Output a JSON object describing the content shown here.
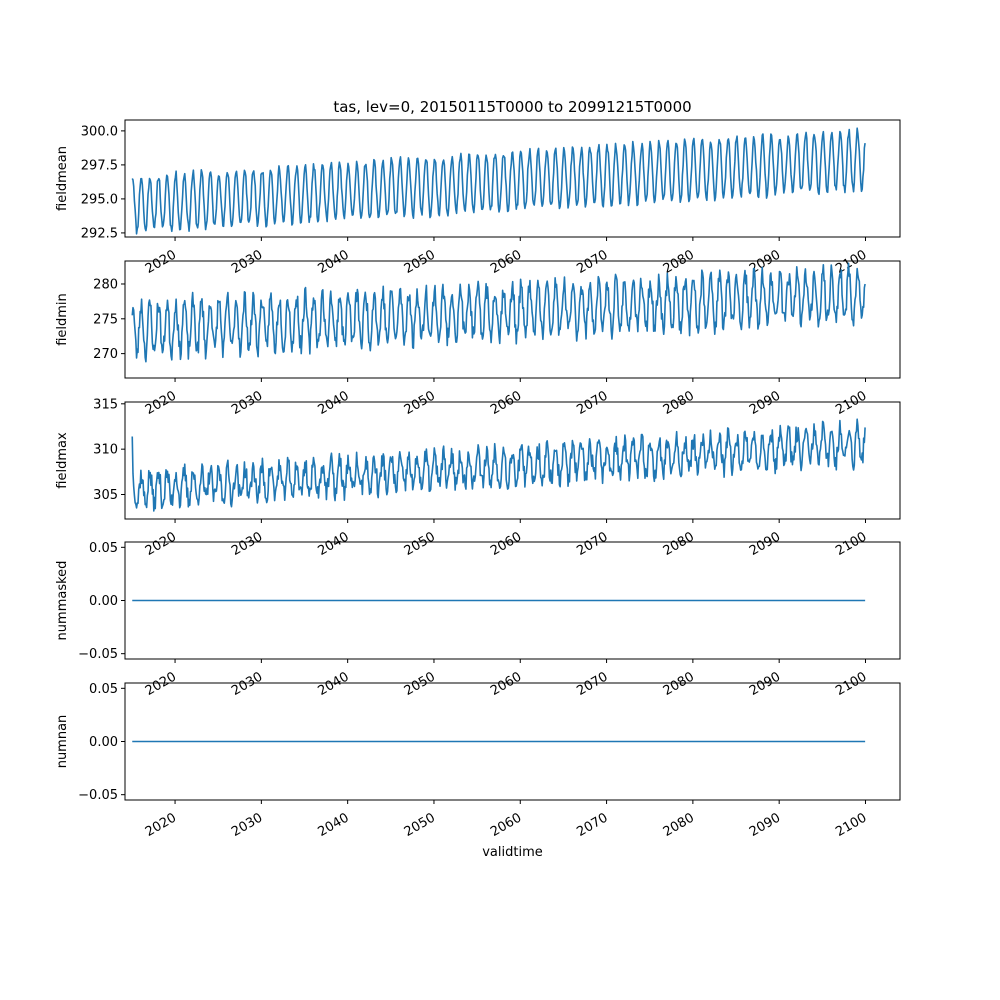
{
  "chart_data": [
    {
      "type": "line",
      "title": "tas, lev=0, 20150115T0000 to 20991215T0000",
      "ylabel": "fieldmean",
      "xlabel": "",
      "xlim": [
        2014.2,
        2104.0
      ],
      "ylim": [
        292.2,
        300.8
      ],
      "yticks": [
        292.5,
        295.0,
        297.5,
        300.0
      ],
      "ytick_labels": [
        "292.5",
        "295.0",
        "297.5",
        "300.0"
      ],
      "xticks": [
        2020,
        2030,
        2040,
        2050,
        2060,
        2070,
        2080,
        2090,
        2100
      ],
      "xtick_labels": [
        "2020",
        "2030",
        "2040",
        "2050",
        "2060",
        "2070",
        "2080",
        "2090",
        "2100"
      ],
      "series": [
        {
          "color": "#1f77b4",
          "x_start": 2015.04,
          "x_step": 0.08333,
          "signal": {
            "start_level": 294.6,
            "end_level": 297.9,
            "amplitude_start": 2.0,
            "amplitude_end": 2.2,
            "noise": 0.3,
            "seed": 11
          },
          "first_value": 296.5,
          "last_value": 299.1,
          "min_value": 292.5,
          "max_value": 300.4
        }
      ]
    },
    {
      "type": "line",
      "title": "",
      "ylabel": "fieldmin",
      "xlabel": "",
      "xlim": [
        2014.2,
        2104.0
      ],
      "ylim": [
        266.5,
        283.3
      ],
      "yticks": [
        270,
        275,
        280
      ],
      "ytick_labels": [
        "270",
        "275",
        "280"
      ],
      "xticks": [
        2020,
        2030,
        2040,
        2050,
        2060,
        2070,
        2080,
        2090,
        2100
      ],
      "xtick_labels": [
        "2020",
        "2030",
        "2040",
        "2050",
        "2060",
        "2070",
        "2080",
        "2090",
        "2100"
      ],
      "series": [
        {
          "color": "#1f77b4",
          "x_start": 2015.04,
          "x_step": 0.08333,
          "signal": {
            "start_level": 273.5,
            "end_level": 278.5,
            "amplitude_start": 3.6,
            "amplitude_end": 3.4,
            "noise": 1.4,
            "seed": 23
          },
          "first_value": 275.5,
          "last_value": 280.0,
          "min_value": 267.2,
          "max_value": 282.6
        }
      ]
    },
    {
      "type": "line",
      "title": "",
      "ylabel": "fieldmax",
      "xlabel": "",
      "xlim": [
        2014.2,
        2104.0
      ],
      "ylim": [
        302.3,
        315.2
      ],
      "yticks": [
        305,
        310,
        315
      ],
      "ytick_labels": [
        "305",
        "310",
        "315"
      ],
      "xticks": [
        2020,
        2030,
        2040,
        2050,
        2060,
        2070,
        2080,
        2090,
        2100
      ],
      "xtick_labels": [
        "2020",
        "2030",
        "2040",
        "2050",
        "2060",
        "2070",
        "2080",
        "2090",
        "2100"
      ],
      "series": [
        {
          "color": "#1f77b4",
          "x_start": 2015.04,
          "x_step": 0.08333,
          "signal": {
            "start_level": 305.5,
            "end_level": 310.6,
            "amplitude_start": 1.6,
            "amplitude_end": 1.8,
            "noise": 1.1,
            "seed": 37
          },
          "first_value": 311.4,
          "last_value": 312.4,
          "min_value": 302.9,
          "max_value": 314.6
        }
      ]
    },
    {
      "type": "line",
      "title": "",
      "ylabel": "nummasked",
      "xlabel": "",
      "xlim": [
        2014.2,
        2104.0
      ],
      "ylim": [
        -0.055,
        0.055
      ],
      "yticks": [
        -0.05,
        0.0,
        0.05
      ],
      "ytick_labels": [
        "−0.05",
        "0.00",
        "0.05"
      ],
      "xticks": [
        2020,
        2030,
        2040,
        2050,
        2060,
        2070,
        2080,
        2090,
        2100
      ],
      "xtick_labels": [
        "2020",
        "2030",
        "2040",
        "2050",
        "2060",
        "2070",
        "2080",
        "2090",
        "2100"
      ],
      "series": [
        {
          "color": "#1f77b4",
          "x": [
            2015.04,
            2099.96
          ],
          "y": [
            0.0,
            0.0
          ]
        }
      ]
    },
    {
      "type": "line",
      "title": "",
      "ylabel": "numnan",
      "xlabel": "validtime",
      "xlim": [
        2014.2,
        2104.0
      ],
      "ylim": [
        -0.055,
        0.055
      ],
      "yticks": [
        -0.05,
        0.0,
        0.05
      ],
      "ytick_labels": [
        "−0.05",
        "0.00",
        "0.05"
      ],
      "xticks": [
        2020,
        2030,
        2040,
        2050,
        2060,
        2070,
        2080,
        2090,
        2100
      ],
      "xtick_labels": [
        "2020",
        "2030",
        "2040",
        "2050",
        "2060",
        "2070",
        "2080",
        "2090",
        "2100"
      ],
      "series": [
        {
          "color": "#1f77b4",
          "x": [
            2015.04,
            2099.96
          ],
          "y": [
            0.0,
            0.0
          ]
        }
      ]
    }
  ]
}
